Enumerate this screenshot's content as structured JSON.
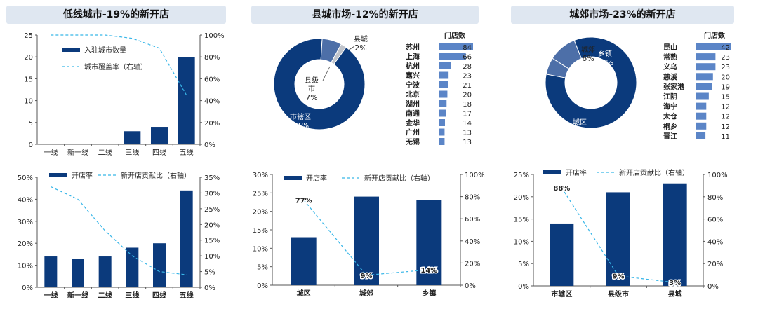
{
  "panels": [
    {
      "title": "低线城市-19%的新开店"
    },
    {
      "title": "县城市场-12%的新开店"
    },
    {
      "title": "城郊市场-23%的新开店"
    }
  ],
  "colors": {
    "bar": "#0b3a7c",
    "line": "#38b6e8",
    "mid": "#4d6fa8",
    "grey": "#c0c4cb",
    "hbar": "#5b85c7"
  },
  "chart_data": [
    {
      "type": "bar",
      "categories": [
        "一线",
        "新一线",
        "二线",
        "三线",
        "四线",
        "五线"
      ],
      "series": [
        {
          "name": "入驻城市数量",
          "values": [
            0,
            0,
            0,
            3,
            4,
            20
          ],
          "axis": "left"
        },
        {
          "name": "城市覆盖率（右轴）",
          "values": [
            1.0,
            1.0,
            1.0,
            0.97,
            0.88,
            0.45
          ],
          "axis": "right",
          "style": "dashed-line"
        }
      ],
      "ylim": [
        0,
        25
      ],
      "yticks": [
        "0",
        "5",
        "10",
        "15",
        "20",
        "25"
      ],
      "y2lim": [
        0,
        1
      ],
      "y2ticks": [
        "0%",
        "20%",
        "40%",
        "60%",
        "80%",
        "100%"
      ]
    },
    {
      "type": "bar",
      "categories": [
        "一线",
        "新一线",
        "二线",
        "三线",
        "四线",
        "五线"
      ],
      "series": [
        {
          "name": "开店率",
          "values": [
            0.14,
            0.13,
            0.14,
            0.18,
            0.2,
            0.44
          ],
          "axis": "left"
        },
        {
          "name": "新开店贡献比（右轴）",
          "values": [
            0.32,
            0.28,
            0.18,
            0.1,
            0.05,
            0.04
          ],
          "axis": "right",
          "style": "dashed-line"
        }
      ],
      "ylim": [
        0,
        0.5
      ],
      "yticks": [
        "0%",
        "10%",
        "20%",
        "30%",
        "40%",
        "50%"
      ],
      "y2lim": [
        0,
        0.35
      ],
      "y2ticks": [
        "0%",
        "5%",
        "10%",
        "15%",
        "20%",
        "25%",
        "30%",
        "35%"
      ]
    },
    {
      "type": "pie",
      "slices": [
        {
          "label": "市辖区",
          "pct": "91%",
          "value": 91
        },
        {
          "label": "县级市",
          "pct": "7%",
          "value": 7
        },
        {
          "label": "县城",
          "pct": "2%",
          "value": 2
        }
      ]
    },
    {
      "type": "bar",
      "orientation": "horizontal",
      "title": "门店数",
      "categories": [
        "苏州",
        "上海",
        "杭州",
        "嘉兴",
        "宁波",
        "北京",
        "湖州",
        "南通",
        "金华",
        "广州",
        "无锡"
      ],
      "values": [
        84,
        66,
        28,
        23,
        21,
        20,
        18,
        17,
        14,
        13,
        13
      ]
    },
    {
      "type": "bar",
      "categories": [
        "城区",
        "城郊",
        "乡镇"
      ],
      "series": [
        {
          "name": "开店率",
          "values": [
            0.13,
            0.24,
            0.23
          ],
          "axis": "left"
        },
        {
          "name": "新开店贡献比（右轴）",
          "values": [
            0.77,
            0.09,
            0.14
          ],
          "labels": [
            "77%",
            "9%",
            "14%"
          ],
          "axis": "right",
          "style": "dashed-line"
        }
      ],
      "ylim": [
        0,
        0.3
      ],
      "yticks": [
        "0%",
        "5%",
        "10%",
        "15%",
        "20%",
        "25%",
        "30%"
      ],
      "y2lim": [
        0,
        1
      ],
      "y2ticks": [
        "0%",
        "20%",
        "40%",
        "60%",
        "80%",
        "100%"
      ]
    },
    {
      "type": "pie",
      "slices": [
        {
          "label": "城区",
          "pct": "84%",
          "value": 84
        },
        {
          "label": "城郊",
          "pct": "6%",
          "value": 6
        },
        {
          "label": "乡镇",
          "pct": "10%",
          "value": 10
        }
      ]
    },
    {
      "type": "bar",
      "orientation": "horizontal",
      "title": "门店数",
      "categories": [
        "昆山",
        "常熟",
        "义乌",
        "慈溪",
        "张家港",
        "江阴",
        "海宁",
        "太仓",
        "桐乡",
        "晋江"
      ],
      "values": [
        42,
        23,
        23,
        20,
        19,
        15,
        12,
        12,
        12,
        11
      ]
    },
    {
      "type": "bar",
      "categories": [
        "市辖区",
        "县级市",
        "县城"
      ],
      "series": [
        {
          "name": "开店率",
          "values": [
            0.14,
            0.21,
            0.23
          ],
          "axis": "left"
        },
        {
          "name": "新开店贡献比（右轴）",
          "values": [
            0.88,
            0.09,
            0.03
          ],
          "labels": [
            "88%",
            "9%",
            "3%"
          ],
          "axis": "right",
          "style": "dashed-line"
        }
      ],
      "ylim": [
        0,
        0.25
      ],
      "yticks": [
        "0%",
        "5%",
        "10%",
        "15%",
        "20%",
        "25%"
      ],
      "y2lim": [
        0,
        1
      ],
      "y2ticks": [
        "0%",
        "20%",
        "40%",
        "60%",
        "80%",
        "100%"
      ]
    }
  ]
}
